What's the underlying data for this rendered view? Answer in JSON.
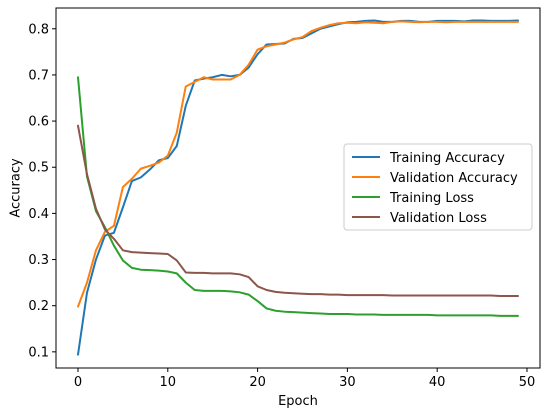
{
  "chart_data": {
    "type": "line",
    "title": "",
    "xlabel": "Epoch",
    "ylabel": "Accuracy",
    "xlim": [
      -2.45,
      51.45
    ],
    "ylim": [
      0.065,
      0.845
    ],
    "xticks": [
      0,
      10,
      20,
      30,
      40,
      50
    ],
    "yticks": [
      0.1,
      0.2,
      0.3,
      0.4,
      0.5,
      0.6,
      0.7,
      0.8
    ],
    "grid": false,
    "legend_position": "center-right",
    "x": [
      0,
      1,
      2,
      3,
      4,
      5,
      6,
      7,
      8,
      9,
      10,
      11,
      12,
      13,
      14,
      15,
      16,
      17,
      18,
      19,
      20,
      21,
      22,
      23,
      24,
      25,
      26,
      27,
      28,
      29,
      30,
      31,
      32,
      33,
      34,
      35,
      36,
      37,
      38,
      39,
      40,
      41,
      42,
      43,
      44,
      45,
      46,
      47,
      48,
      49
    ],
    "series": [
      {
        "name": "Training Accuracy",
        "color": "#1f77b4",
        "values": [
          0.094,
          0.228,
          0.3,
          0.352,
          0.358,
          0.413,
          0.47,
          0.478,
          0.495,
          0.515,
          0.52,
          0.546,
          0.633,
          0.688,
          0.692,
          0.695,
          0.7,
          0.697,
          0.7,
          0.716,
          0.745,
          0.766,
          0.767,
          0.768,
          0.778,
          0.78,
          0.79,
          0.8,
          0.805,
          0.81,
          0.814,
          0.815,
          0.817,
          0.818,
          0.815,
          0.815,
          0.817,
          0.817,
          0.815,
          0.815,
          0.817,
          0.817,
          0.817,
          0.816,
          0.818,
          0.818,
          0.817,
          0.817,
          0.817,
          0.818
        ]
      },
      {
        "name": "Validation Accuracy",
        "color": "#ff7f0e",
        "values": [
          0.198,
          0.25,
          0.32,
          0.36,
          0.373,
          0.457,
          0.475,
          0.497,
          0.503,
          0.51,
          0.525,
          0.575,
          0.675,
          0.685,
          0.695,
          0.69,
          0.69,
          0.69,
          0.7,
          0.722,
          0.755,
          0.762,
          0.766,
          0.77,
          0.777,
          0.782,
          0.795,
          0.802,
          0.808,
          0.812,
          0.813,
          0.812,
          0.814,
          0.813,
          0.812,
          0.815,
          0.816,
          0.815,
          0.814,
          0.815,
          0.815,
          0.814,
          0.815,
          0.815,
          0.815,
          0.815,
          0.815,
          0.815,
          0.815,
          0.815
        ]
      },
      {
        "name": "Training Loss",
        "color": "#2ca02c",
        "values": [
          0.695,
          0.48,
          0.405,
          0.37,
          0.33,
          0.298,
          0.282,
          0.278,
          0.277,
          0.276,
          0.274,
          0.27,
          0.25,
          0.234,
          0.232,
          0.232,
          0.232,
          0.231,
          0.229,
          0.224,
          0.21,
          0.194,
          0.189,
          0.187,
          0.186,
          0.185,
          0.184,
          0.183,
          0.182,
          0.182,
          0.182,
          0.181,
          0.181,
          0.181,
          0.18,
          0.18,
          0.18,
          0.18,
          0.18,
          0.18,
          0.179,
          0.179,
          0.179,
          0.179,
          0.179,
          0.179,
          0.179,
          0.178,
          0.178,
          0.178
        ]
      },
      {
        "name": "Validation Loss",
        "color": "#8c564b",
        "values": [
          0.59,
          0.485,
          0.41,
          0.365,
          0.345,
          0.32,
          0.316,
          0.315,
          0.314,
          0.313,
          0.312,
          0.298,
          0.272,
          0.271,
          0.271,
          0.27,
          0.27,
          0.27,
          0.268,
          0.262,
          0.242,
          0.234,
          0.23,
          0.228,
          0.227,
          0.226,
          0.225,
          0.225,
          0.224,
          0.224,
          0.223,
          0.223,
          0.223,
          0.223,
          0.223,
          0.222,
          0.222,
          0.222,
          0.222,
          0.222,
          0.222,
          0.222,
          0.222,
          0.222,
          0.222,
          0.222,
          0.222,
          0.221,
          0.221,
          0.221
        ]
      }
    ]
  }
}
